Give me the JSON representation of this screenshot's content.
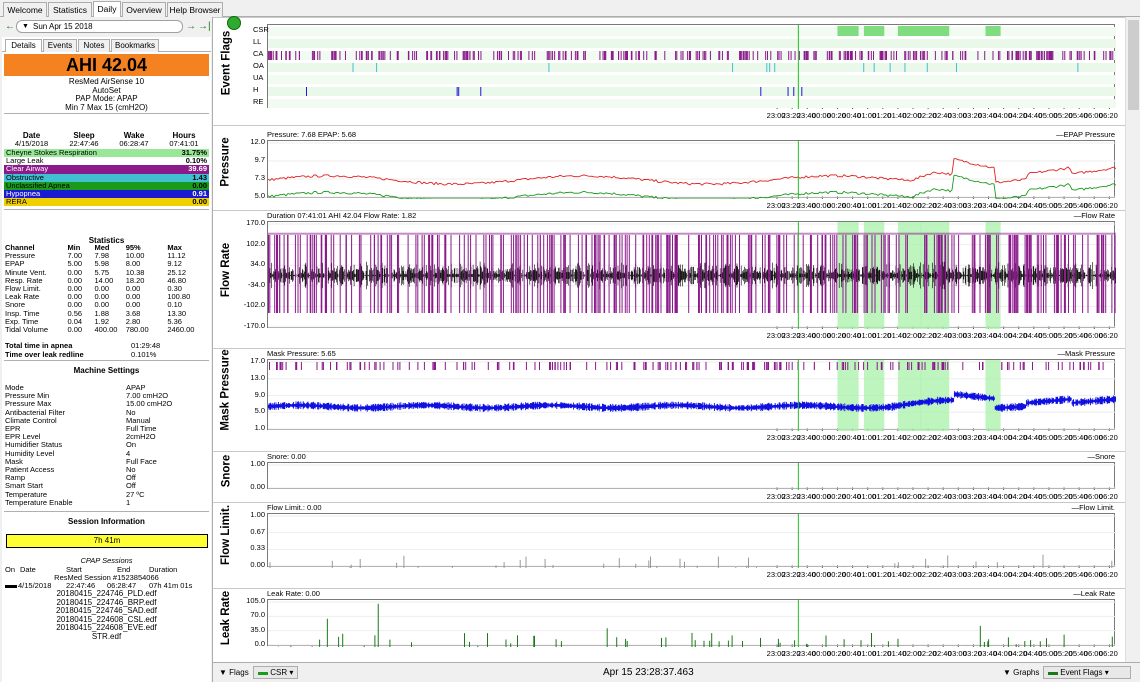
{
  "tabs": [
    "Welcome",
    "Statistics",
    "Daily",
    "Overview",
    "Help Browser"
  ],
  "nav": {
    "prev": "←",
    "date": "Sun Apr 15 2018",
    "next": "→",
    "last": "→|"
  },
  "subtabs": [
    "Details",
    "Events",
    "Notes",
    "Bookmarks"
  ],
  "ahi": "AHI 42.04",
  "machine": {
    "model": "ResMed AirSense 10",
    "mode_name": "AutoSet",
    "pap_mode": "PAP Mode: APAP",
    "pressure_range": "Min 7 Max 15 (cmH2O)"
  },
  "summary": {
    "headers": [
      "Date",
      "Sleep",
      "Wake",
      "Hours"
    ],
    "values": [
      "4/15/2018",
      "22:47:46",
      "06:28:47",
      "07:41:01"
    ]
  },
  "events": [
    {
      "name": "Cheyne Stokes Respiration",
      "value": "31.75%",
      "bg": "#98e898",
      "fg": "#000"
    },
    {
      "name": "Large Leak",
      "value": "0.10%",
      "bg": "#ffffff",
      "fg": "#000"
    },
    {
      "name": "Clear Airway",
      "value": "39.69",
      "bg": "#8b1a8b",
      "fg": "#fff"
    },
    {
      "name": "Obstructive",
      "value": "1.43",
      "bg": "#40c0d0",
      "fg": "#000"
    },
    {
      "name": "Unclassified Apnea",
      "value": "0.00",
      "bg": "#1a9a1a",
      "fg": "#000"
    },
    {
      "name": "Hypopnea",
      "value": "0.91",
      "bg": "#1a1ad0",
      "fg": "#fff"
    },
    {
      "name": "RERA",
      "value": "0.00",
      "bg": "#f0d000",
      "fg": "#000"
    }
  ],
  "statistics": {
    "title": "Statistics",
    "headers": [
      "Channel",
      "Min",
      "Med",
      "95%",
      "Max"
    ],
    "rows": [
      [
        "Pressure",
        "7.00",
        "7.98",
        "10.00",
        "11.12"
      ],
      [
        "EPAP",
        "5.00",
        "5.98",
        "8.00",
        "9.12"
      ],
      [
        "Minute Vent.",
        "0.00",
        "5.75",
        "10.38",
        "25.12"
      ],
      [
        "Resp. Rate",
        "0.00",
        "14.00",
        "18.20",
        "46.80"
      ],
      [
        "Flow Limit.",
        "0.00",
        "0.00",
        "0.00",
        "0.30"
      ],
      [
        "Leak Rate",
        "0.00",
        "0.00",
        "0.00",
        "100.80"
      ],
      [
        "Snore",
        "0.00",
        "0.00",
        "0.00",
        "0.10"
      ],
      [
        "Insp. Time",
        "0.56",
        "1.88",
        "3.68",
        "13.30"
      ],
      [
        "Exp. Time",
        "0.04",
        "1.92",
        "2.80",
        "5.36"
      ],
      [
        "Tidal Volume",
        "0.00",
        "400.00",
        "780.00",
        "2460.00"
      ]
    ]
  },
  "totals": [
    [
      "Total time in apnea",
      "01:29:48"
    ],
    [
      "Time over leak redline",
      "0.101%"
    ]
  ],
  "machine_settings": {
    "title": "Machine Settings",
    "rows": [
      [
        "Mode",
        "APAP"
      ],
      [
        "Pressure Min",
        "7.00 cmH2O"
      ],
      [
        "Pressure Max",
        "15.00 cmH2O"
      ],
      [
        "Antibacterial Filter",
        "No"
      ],
      [
        "Climate Control",
        "Manual"
      ],
      [
        "EPR",
        "Full Time"
      ],
      [
        "EPR Level",
        "2cmH2O"
      ],
      [
        "Humidifier Status",
        "On"
      ],
      [
        "Humidity Level",
        "4"
      ],
      [
        "Mask",
        "Full Face"
      ],
      [
        "Patient Access",
        "No"
      ],
      [
        "Ramp",
        "Off"
      ],
      [
        "Smart Start",
        "Off"
      ],
      [
        "Temperature",
        "27 ºC"
      ],
      [
        "Temperature Enable",
        "1"
      ]
    ]
  },
  "session_info": {
    "title": "Session Information",
    "duration": "7h 41m"
  },
  "cpap": {
    "title": "CPAP Sessions",
    "headers": [
      "On",
      "Date",
      "Start",
      "End",
      "Duration"
    ],
    "date": "4/15/2018",
    "start": "22:47:46",
    "end": "06:28:47",
    "duration": "07h 41m 01s",
    "files": [
      "ResMed Session #1523854066",
      "20180415_224746_PLD.edf",
      "20180415_224746_BRP.edf",
      "20180415_224746_SAD.edf",
      "20180415_224608_CSL.edf",
      "20180415_224608_EVE.edf",
      "STR.edf"
    ]
  },
  "time_ticks": [
    "23:00",
    "23:20",
    "23:40",
    "00:00",
    "00:20",
    "00:40",
    "01:00",
    "01:20",
    "01:40",
    "02:00",
    "02:20",
    "02:40",
    "03:00",
    "03:20",
    "03:40",
    "04:00",
    "04:20",
    "04:40",
    "05:00",
    "05:20",
    "05:40",
    "06:00",
    "06:20"
  ],
  "graphs": {
    "event_flags": {
      "label": "Event Flags",
      "rows": [
        "CSR",
        "LL",
        "CA",
        "OA",
        "UA",
        "H",
        "RE"
      ]
    },
    "pressure": {
      "label": "Pressure",
      "title": "Pressure: 7.68 EPAP: 5.68",
      "legend": "EPAP Pressure",
      "yticks": [
        "12.0",
        "9.7",
        "7.3",
        "5.0"
      ],
      "ylim": [
        5,
        12
      ]
    },
    "flow_rate": {
      "label": "Flow Rate",
      "title": "Duration 07:41:01 AHI 42.04 Flow Rate: 1.82",
      "legend": "Flow Rate",
      "yticks": [
        "170.0",
        "102.0",
        "34.0",
        "-34.0",
        "-102.0",
        "-170.0"
      ],
      "ylim": [
        -170,
        170
      ]
    },
    "mask_pressure": {
      "label": "Mask Pressure",
      "title": "Mask Pressure: 5.65",
      "legend": "Mask Pressure",
      "yticks": [
        "17.0",
        "13.0",
        "9.0",
        "5.0",
        "1.0"
      ],
      "ylim": [
        1,
        17
      ]
    },
    "snore": {
      "label": "Snore",
      "title": "Snore: 0.00",
      "legend": "Snore",
      "yticks": [
        "1.00",
        "0.00"
      ],
      "ylim": [
        0,
        1
      ]
    },
    "flow_limit": {
      "label": "Flow Limit.",
      "title": "Flow Limit.: 0.00",
      "legend": "Flow Limit.",
      "yticks": [
        "1.00",
        "0.67",
        "0.33",
        "0.00"
      ],
      "ylim": [
        0,
        1
      ]
    },
    "leak_rate": {
      "label": "Leak Rate",
      "title": "Leak Rate: 0.00",
      "legend": "Leak Rate",
      "yticks": [
        "105.0",
        "70.0",
        "35.0",
        "0.0"
      ],
      "ylim": [
        0,
        105
      ]
    }
  },
  "bottom": {
    "flags": "Flags",
    "csr": "CSR",
    "time": "Apr 15 23:28:37.463",
    "graphs": "Graphs",
    "event_flags": "Event Flags"
  },
  "colors": {
    "csr": "#a8f0a8",
    "ca": "#8b1a8b",
    "oa": "#40c0d0",
    "hyp": "#1a1ad0",
    "pressure": "#e02020",
    "epap": "#1a9a1a",
    "flow": "#000000",
    "mask": "#1010e0",
    "leak": "#1a7a1a"
  }
}
